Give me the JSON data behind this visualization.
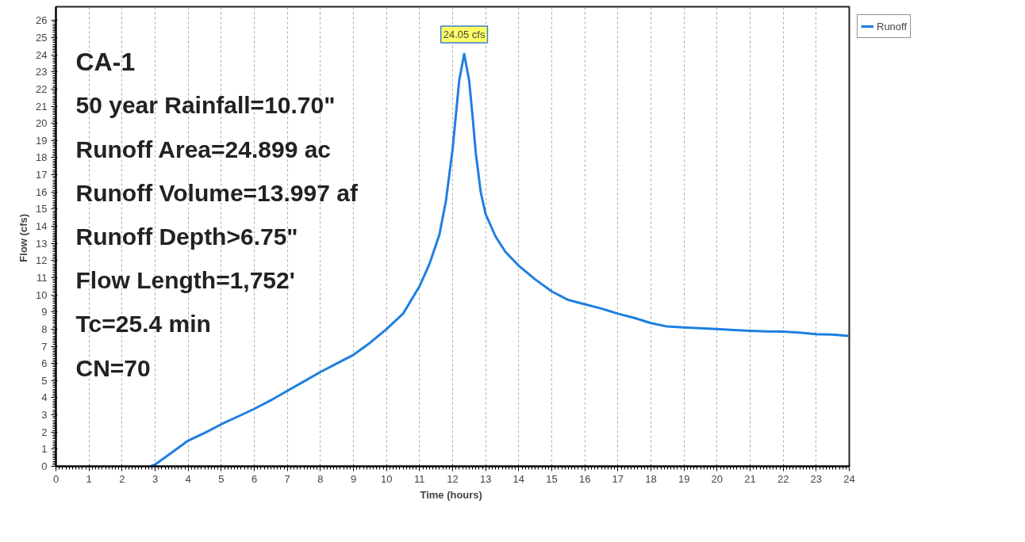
{
  "chart_data": {
    "type": "line",
    "xlabel": "Time  (hours)",
    "ylabel": "Flow  (cfs)",
    "x": [
      2.85,
      3,
      3.5,
      4,
      4.5,
      5,
      5.5,
      6,
      6.5,
      7,
      7.5,
      8,
      8.5,
      9,
      9.5,
      10,
      10.5,
      11,
      11.3,
      11.6,
      11.8,
      12,
      12.1,
      12.2,
      12.35,
      12.5,
      12.6,
      12.7,
      12.85,
      13,
      13.3,
      13.6,
      14,
      14.5,
      15,
      15.5,
      16,
      16.5,
      17,
      17.5,
      18,
      18.5,
      19,
      19.5,
      20,
      20.5,
      21,
      21.5,
      22,
      22.5,
      23,
      23.5,
      24
    ],
    "series": [
      {
        "name": "Runoff",
        "color": "#1f7fe0",
        "values": [
          0,
          0.1,
          0.8,
          1.5,
          1.95,
          2.45,
          2.9,
          3.35,
          3.85,
          4.4,
          4.95,
          5.5,
          6.0,
          6.5,
          7.2,
          8.0,
          8.9,
          10.5,
          11.8,
          13.5,
          15.5,
          18.5,
          20.5,
          22.5,
          24.05,
          22.5,
          20.5,
          18.3,
          16.0,
          14.7,
          13.4,
          12.5,
          11.7,
          10.9,
          10.2,
          9.7,
          9.45,
          9.2,
          8.9,
          8.65,
          8.35,
          8.15,
          8.1,
          8.05,
          8.0,
          7.95,
          7.9,
          7.87,
          7.85,
          7.8,
          7.7,
          7.68,
          7.6
        ]
      }
    ],
    "xlim": [
      0,
      24
    ],
    "ylim": [
      0,
      26.8
    ],
    "xticks": [
      0,
      1,
      2,
      3,
      4,
      5,
      6,
      7,
      8,
      9,
      10,
      11,
      12,
      13,
      14,
      15,
      16,
      17,
      18,
      19,
      20,
      21,
      22,
      23,
      24
    ],
    "yticks": [
      0,
      1,
      2,
      3,
      4,
      5,
      6,
      7,
      8,
      9,
      10,
      11,
      12,
      13,
      14,
      15,
      16,
      17,
      18,
      19,
      20,
      21,
      22,
      23,
      24,
      25,
      26
    ],
    "grid": "x",
    "legend": "top right",
    "annotations": [
      "CA-1",
      "50 year Rainfall=10.70\"",
      "Runoff Area=24.899 ac",
      "Runoff Volume=13.997 af",
      "Runoff Depth>6.75\"",
      "Flow Length=1,752'",
      "Tc=25.4 min",
      "CN=70",
      {
        "text": "24.05 cfs",
        "x": 12.35,
        "y": 24.05
      }
    ]
  }
}
